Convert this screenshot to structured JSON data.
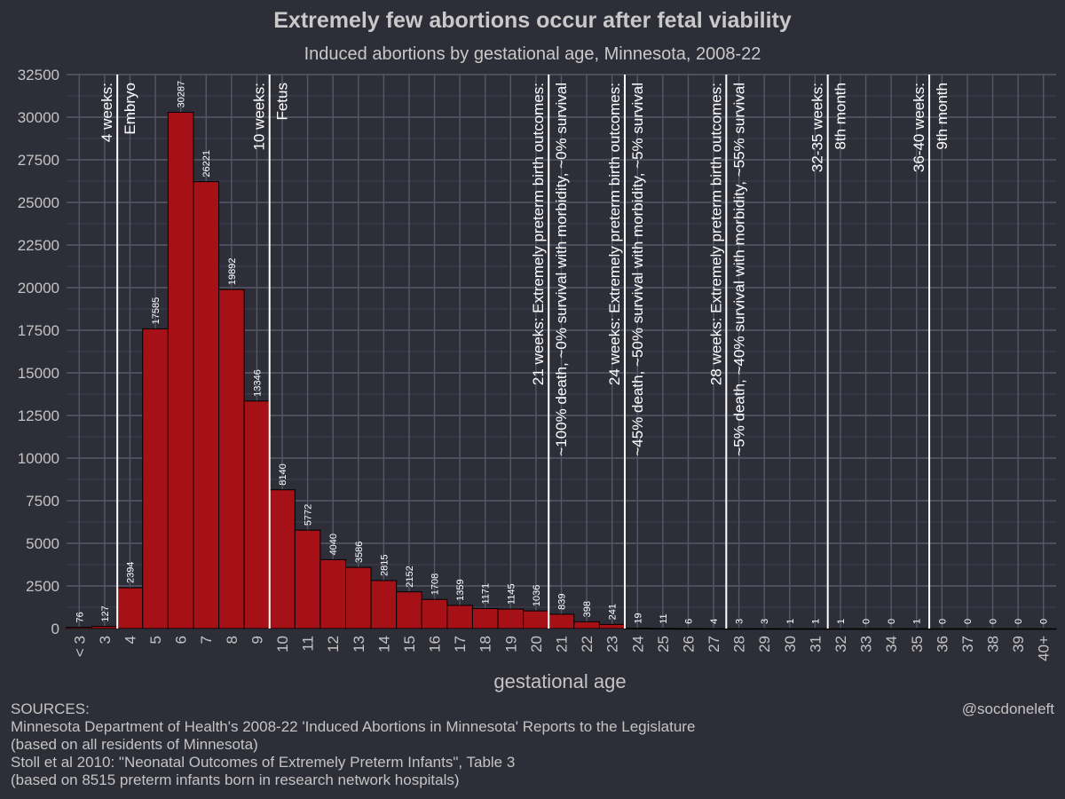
{
  "chart_data": {
    "type": "bar",
    "title": "Extremely few abortions occur after fetal viability",
    "subtitle": "Induced abortions by gestational age, Minnesota, 2008-22",
    "xlabel": "gestational age",
    "ylabel": "",
    "ylim": [
      0,
      32500
    ],
    "yticks": [
      0,
      2500,
      5000,
      7500,
      10000,
      12500,
      15000,
      17500,
      20000,
      22500,
      25000,
      27500,
      30000,
      32500
    ],
    "categories": [
      "< 3",
      "3",
      "4",
      "5",
      "6",
      "7",
      "8",
      "9",
      "10",
      "11",
      "12",
      "13",
      "14",
      "15",
      "16",
      "17",
      "18",
      "19",
      "20",
      "21",
      "22",
      "23",
      "24",
      "25",
      "26",
      "27",
      "28",
      "29",
      "30",
      "31",
      "32",
      "33",
      "34",
      "35",
      "36",
      "37",
      "38",
      "39",
      "40+"
    ],
    "values": [
      76,
      127,
      2394,
      17585,
      30287,
      26221,
      19892,
      13346,
      8140,
      5772,
      4040,
      3586,
      2815,
      2152,
      1708,
      1359,
      1171,
      1145,
      1036,
      839,
      398,
      241,
      19,
      11,
      6,
      4,
      3,
      3,
      1,
      1,
      1,
      0,
      0,
      1,
      0,
      0,
      0,
      0,
      0
    ],
    "bar_color": "#a51116",
    "background_color": "#2d2e38",
    "grid": true,
    "reference_lines": [
      {
        "at_category": "4",
        "left_text": "4 weeks:",
        "right_text": "Embryo"
      },
      {
        "at_category": "10",
        "left_text": "10 weeks:",
        "right_text": "Fetus"
      },
      {
        "at_category": "21",
        "left_text": "21 weeks: Extremely preterm birth outcomes:",
        "right_text": "~100% death, ~0% survival with morbidity, ~0% survival"
      },
      {
        "at_category": "24",
        "left_text": "24 weeks: Extremely preterm birth outcomes:",
        "right_text": "~45% death, ~50% survival with morbidity, ~5% survival"
      },
      {
        "at_category": "28",
        "left_text": "28 weeks: Extremely preterm birth outcomes:",
        "right_text": "~5% death, ~40% survival with morbidity, ~55% survival"
      },
      {
        "at_category": "32",
        "left_text": "32-35 weeks:",
        "right_text": "8th month"
      },
      {
        "at_category": "36",
        "left_text": "36-40 weeks:",
        "right_text": "9th month"
      }
    ]
  },
  "sources": {
    "heading": "SOURCES:",
    "lines": [
      "Minnesota Department of Health's 2008-22 'Induced Abortions in Minnesota' Reports to the Legislature",
      "(based on all residents of Minnesota)",
      "Stoll et al 2010: \"Neonatal Outcomes of Extremely Preterm Infants\", Table 3",
      "(based on 8515 preterm infants born in research network hospitals)"
    ]
  },
  "credit": "@socdoneleft"
}
